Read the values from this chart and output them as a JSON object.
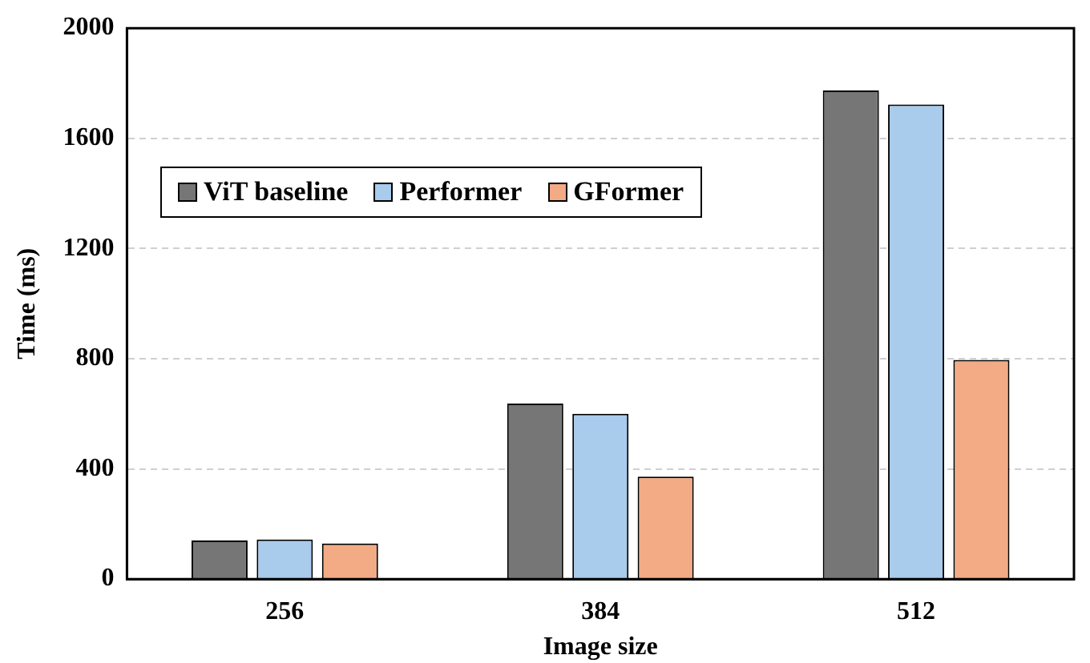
{
  "chart_data": {
    "type": "bar",
    "xlabel": "Image size",
    "ylabel": "Time (ms)",
    "categories": [
      "256",
      "384",
      "512"
    ],
    "series": [
      {
        "name": "ViT baseline",
        "color": "#767676",
        "values": [
          140,
          637,
          1774
        ]
      },
      {
        "name": "Performer",
        "color": "#a9cbec",
        "values": [
          144,
          600,
          1723
        ]
      },
      {
        "name": "GFormer",
        "color": "#f2ab85",
        "values": [
          129,
          372,
          796
        ]
      }
    ],
    "ylim": [
      0,
      2000
    ],
    "yticks": [
      0,
      400,
      800,
      1200,
      1600,
      2000
    ],
    "grid": "y",
    "legend": "top left"
  }
}
